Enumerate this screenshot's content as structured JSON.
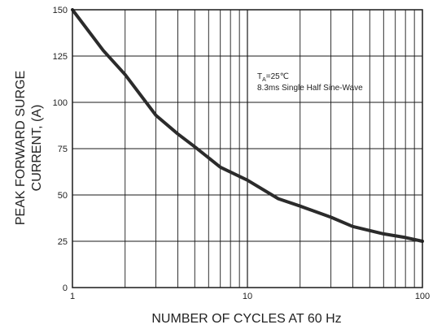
{
  "chart_data": {
    "type": "line",
    "title": "",
    "xlabel": "NUMBER OF CYCLES AT 60 Hz",
    "ylabel_lines": [
      "PEAK FORWARD SURGE",
      "CURRENT, (A)"
    ],
    "x_scale": "log",
    "xlim": [
      1,
      100
    ],
    "ylim": [
      0,
      150
    ],
    "x_ticks": [
      1,
      10,
      100
    ],
    "x_tick_labels": [
      "1",
      "10",
      "100"
    ],
    "y_ticks": [
      0,
      25,
      50,
      75,
      100,
      125,
      150
    ],
    "y_tick_labels": [
      "0",
      "25",
      "50",
      "75",
      "100",
      "125",
      "150"
    ],
    "grid": true,
    "annotation": {
      "line1_main": "T",
      "line1_sub": "A",
      "line1_rest": "=25℃",
      "line2": "8.3ms Single Half Sine-Wave"
    },
    "series": [
      {
        "x": [
          1,
          1.5,
          2,
          3,
          4,
          5,
          7,
          10,
          15,
          20,
          30,
          40,
          60,
          80,
          100
        ],
        "y": [
          150,
          128,
          115,
          93,
          83,
          76,
          65,
          58,
          48,
          44,
          38,
          33,
          29,
          27,
          25
        ]
      }
    ],
    "line_color": "#2b2b2b",
    "grid_color": "#1a1a1a"
  }
}
